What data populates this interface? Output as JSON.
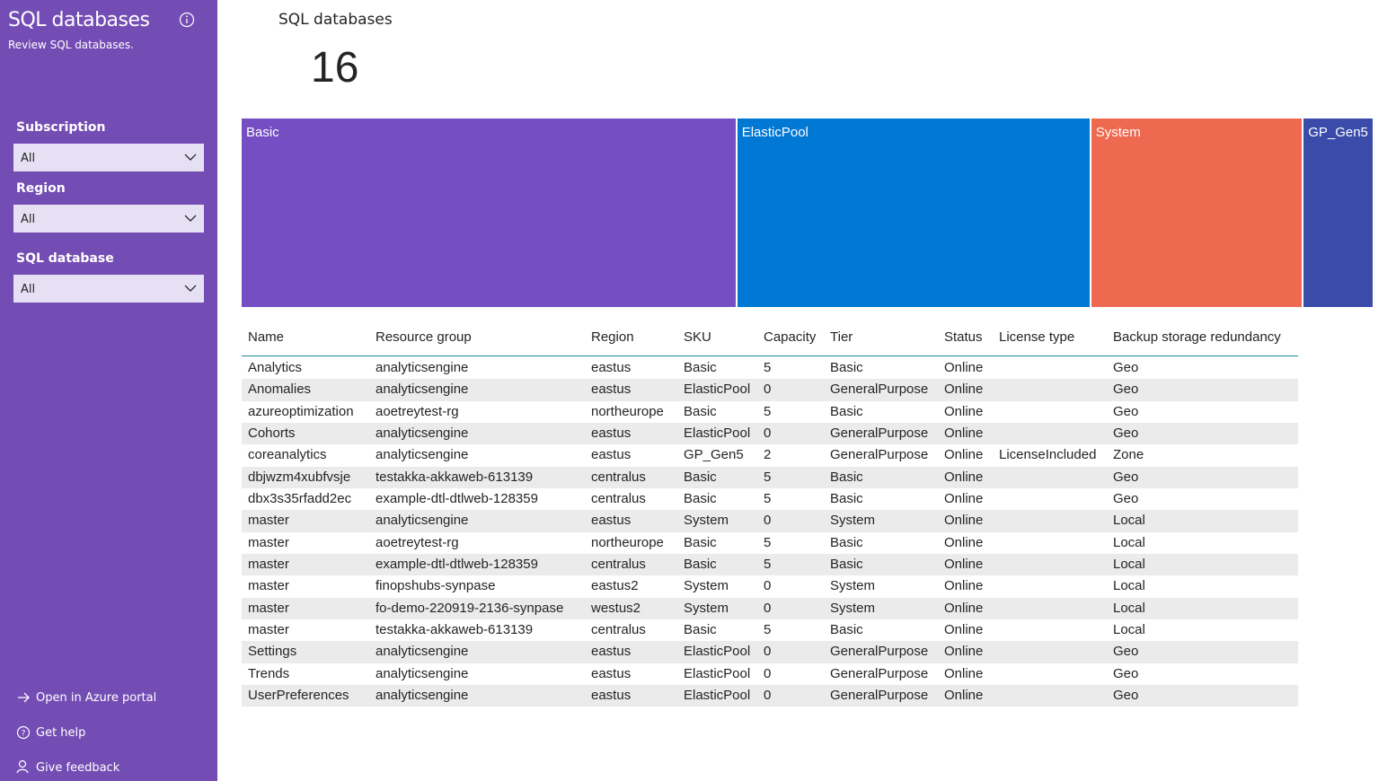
{
  "sidebar": {
    "title": "SQL databases",
    "subtitle": "Review SQL databases.",
    "filters": [
      {
        "label": "Subscription",
        "value": "All"
      },
      {
        "label": "Region",
        "value": "All"
      },
      {
        "label": "SQL database",
        "value": "All"
      }
    ],
    "links": [
      "Open in Azure portal",
      "Get help",
      "Give feedback"
    ]
  },
  "card": {
    "title": "SQL databases",
    "value": 16
  },
  "chart_data": {
    "type": "treemap",
    "categories": [
      "Basic",
      "ElasticPool",
      "System",
      "GP_Gen5"
    ],
    "values": [
      7,
      5,
      3,
      1
    ],
    "colors": [
      "#744ec2",
      "#0078d4",
      "#ef6950",
      "#3a4baa"
    ]
  },
  "table": {
    "columns": [
      "Name",
      "Resource group",
      "Region",
      "SKU",
      "Capacity",
      "Tier",
      "Status",
      "License type",
      "Backup storage redundancy"
    ],
    "rows": [
      [
        "Analytics",
        "analyticsengine",
        "eastus",
        "Basic",
        5,
        "Basic",
        "Online",
        null,
        "Geo"
      ],
      [
        "Anomalies",
        "analyticsengine",
        "eastus",
        "ElasticPool",
        0,
        "GeneralPurpose",
        "Online",
        null,
        "Geo"
      ],
      [
        "azureoptimization",
        "aoetreytest-rg",
        "northeurope",
        "Basic",
        5,
        "Basic",
        "Online",
        null,
        "Geo"
      ],
      [
        "Cohorts",
        "analyticsengine",
        "eastus",
        "ElasticPool",
        0,
        "GeneralPurpose",
        "Online",
        null,
        "Geo"
      ],
      [
        "coreanalytics",
        "analyticsengine",
        "eastus",
        "GP_Gen5",
        2,
        "GeneralPurpose",
        "Online",
        "LicenseIncluded",
        "Zone"
      ],
      [
        "dbjwzm4xubfvsje",
        "testakka-akkaweb-613139",
        "centralus",
        "Basic",
        5,
        "Basic",
        "Online",
        null,
        "Geo"
      ],
      [
        "dbx3s35rfadd2ec",
        "example-dtl-dtlweb-128359",
        "centralus",
        "Basic",
        5,
        "Basic",
        "Online",
        null,
        "Geo"
      ],
      [
        "master",
        "analyticsengine",
        "eastus",
        "System",
        0,
        "System",
        "Online",
        null,
        "Local"
      ],
      [
        "master",
        "aoetreytest-rg",
        "northeurope",
        "Basic",
        5,
        "Basic",
        "Online",
        null,
        "Local"
      ],
      [
        "master",
        "example-dtl-dtlweb-128359",
        "centralus",
        "Basic",
        5,
        "Basic",
        "Online",
        null,
        "Local"
      ],
      [
        "master",
        "finopshubs-synpase",
        "eastus2",
        "System",
        0,
        "System",
        "Online",
        null,
        "Local"
      ],
      [
        "master",
        "fo-demo-220919-2136-synpase",
        "westus2",
        "System",
        0,
        "System",
        "Online",
        null,
        "Local"
      ],
      [
        "master",
        "testakka-akkaweb-613139",
        "centralus",
        "Basic",
        5,
        "Basic",
        "Online",
        null,
        "Local"
      ],
      [
        "Settings",
        "analyticsengine",
        "eastus",
        "ElasticPool",
        0,
        "GeneralPurpose",
        "Online",
        null,
        "Geo"
      ],
      [
        "Trends",
        "analyticsengine",
        "eastus",
        "ElasticPool",
        0,
        "GeneralPurpose",
        "Online",
        null,
        "Geo"
      ],
      [
        "UserPreferences",
        "analyticsengine",
        "eastus",
        "ElasticPool",
        0,
        "GeneralPurpose",
        "Online",
        null,
        "Geo"
      ]
    ]
  }
}
